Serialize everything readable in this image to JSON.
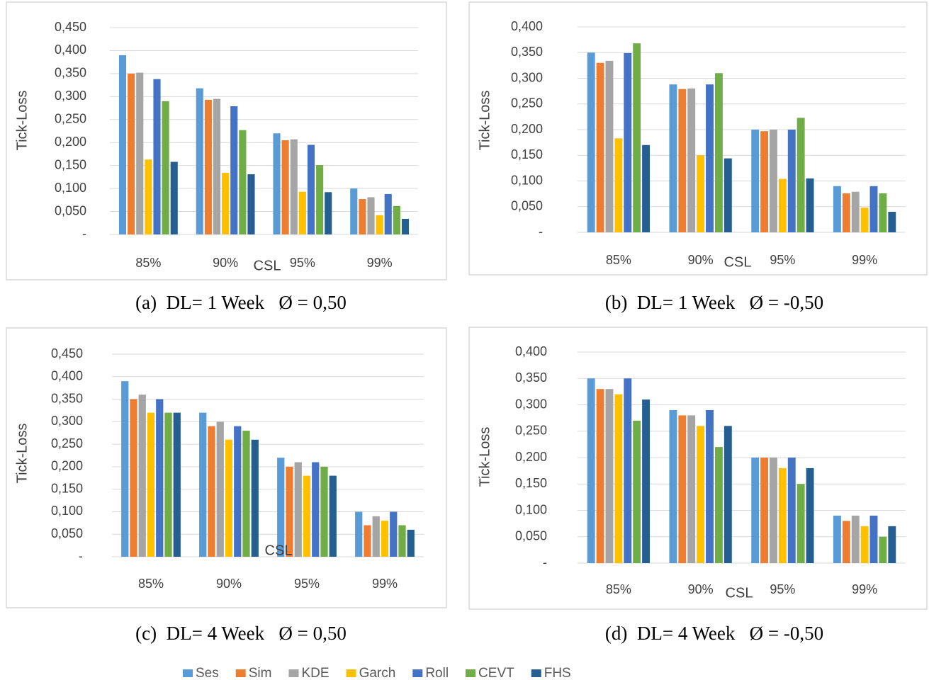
{
  "chart_data": [
    {
      "type": "bar",
      "caption": "(a)  DL= 1 Week   Ø = 0,50",
      "y_label": "Tick-Loss",
      "x_label": "CSL",
      "categories": [
        "85%",
        "90%",
        "95%",
        "99%"
      ],
      "ylim": [
        0,
        0.45
      ],
      "grid": true,
      "yticks": [
        {
          "value": 0,
          "label": "-"
        },
        {
          "value": 0.05,
          "label": "0,050"
        },
        {
          "value": 0.1,
          "label": "0,100"
        },
        {
          "value": 0.15,
          "label": "0,150"
        },
        {
          "value": 0.2,
          "label": "0,200"
        },
        {
          "value": 0.25,
          "label": "0,250"
        },
        {
          "value": 0.3,
          "label": "0,300"
        },
        {
          "value": 0.35,
          "label": "0,350"
        },
        {
          "value": 0.4,
          "label": "0,400"
        },
        {
          "value": 0.45,
          "label": "0,450"
        }
      ],
      "series": [
        {
          "values": [
            0.39,
            0.318,
            0.22,
            0.1
          ]
        },
        {
          "values": [
            0.35,
            0.293,
            0.205,
            0.077
          ]
        },
        {
          "values": [
            0.352,
            0.295,
            0.207,
            0.081
          ]
        },
        {
          "values": [
            0.163,
            0.134,
            0.093,
            0.042
          ]
        },
        {
          "values": [
            0.338,
            0.279,
            0.195,
            0.088
          ]
        },
        {
          "values": [
            0.29,
            0.227,
            0.151,
            0.062
          ]
        },
        {
          "values": [
            0.158,
            0.131,
            0.092,
            0.034
          ]
        }
      ]
    },
    {
      "type": "bar",
      "caption": "(b)  DL= 1 Week   Ø = -0,50",
      "y_label": "Tick-Loss",
      "x_label": "CSL",
      "categories": [
        "85%",
        "90%",
        "95%",
        "99%"
      ],
      "ylim": [
        0,
        0.4
      ],
      "grid": true,
      "yticks": [
        {
          "value": 0,
          "label": "-"
        },
        {
          "value": 0.05,
          "label": "0,050"
        },
        {
          "value": 0.1,
          "label": "0,100"
        },
        {
          "value": 0.15,
          "label": "0,150"
        },
        {
          "value": 0.2,
          "label": "0,200"
        },
        {
          "value": 0.25,
          "label": "0,250"
        },
        {
          "value": 0.3,
          "label": "0,300"
        },
        {
          "value": 0.35,
          "label": "0,350"
        },
        {
          "value": 0.4,
          "label": "0,400"
        }
      ],
      "series": [
        {
          "values": [
            0.35,
            0.288,
            0.2,
            0.09
          ]
        },
        {
          "values": [
            0.33,
            0.279,
            0.197,
            0.076
          ]
        },
        {
          "values": [
            0.334,
            0.28,
            0.2,
            0.079
          ]
        },
        {
          "values": [
            0.183,
            0.15,
            0.104,
            0.048
          ]
        },
        {
          "values": [
            0.349,
            0.288,
            0.2,
            0.09
          ]
        },
        {
          "values": [
            0.368,
            0.31,
            0.223,
            0.076
          ]
        },
        {
          "values": [
            0.17,
            0.144,
            0.105,
            0.04
          ]
        }
      ]
    },
    {
      "type": "bar",
      "caption": "(c)  DL= 4 Week   Ø = 0,50",
      "y_label": "Tick-Loss",
      "x_label": "CSL",
      "categories": [
        "85%",
        "90%",
        "95%",
        "99%"
      ],
      "ylim": [
        0,
        0.45
      ],
      "grid": true,
      "yticks": [
        {
          "value": 0,
          "label": "-"
        },
        {
          "value": 0.05,
          "label": "0,050"
        },
        {
          "value": 0.1,
          "label": "0,100"
        },
        {
          "value": 0.15,
          "label": "0,150"
        },
        {
          "value": 0.2,
          "label": "0,200"
        },
        {
          "value": 0.25,
          "label": "0,250"
        },
        {
          "value": 0.3,
          "label": "0,300"
        },
        {
          "value": 0.35,
          "label": "0,350"
        },
        {
          "value": 0.4,
          "label": "0,400"
        },
        {
          "value": 0.45,
          "label": "0,450"
        }
      ],
      "series": [
        {
          "values": [
            0.39,
            0.32,
            0.22,
            0.1
          ]
        },
        {
          "values": [
            0.35,
            0.29,
            0.2,
            0.07
          ]
        },
        {
          "values": [
            0.36,
            0.3,
            0.21,
            0.09
          ]
        },
        {
          "values": [
            0.32,
            0.26,
            0.18,
            0.08
          ]
        },
        {
          "values": [
            0.35,
            0.29,
            0.21,
            0.1
          ]
        },
        {
          "values": [
            0.32,
            0.28,
            0.2,
            0.07
          ]
        },
        {
          "values": [
            0.32,
            0.26,
            0.18,
            0.06
          ]
        }
      ]
    },
    {
      "type": "bar",
      "caption": "(d)  DL= 4 Week   Ø = -0,50",
      "y_label": "Tick-Loss",
      "x_label": "CSL",
      "categories": [
        "85%",
        "90%",
        "95%",
        "99%"
      ],
      "ylim": [
        0,
        0.4
      ],
      "grid": true,
      "yticks": [
        {
          "value": 0,
          "label": "-"
        },
        {
          "value": 0.05,
          "label": "0,050"
        },
        {
          "value": 0.1,
          "label": "0,100"
        },
        {
          "value": 0.15,
          "label": "0,150"
        },
        {
          "value": 0.2,
          "label": "0,200"
        },
        {
          "value": 0.25,
          "label": "0,250"
        },
        {
          "value": 0.3,
          "label": "0,300"
        },
        {
          "value": 0.35,
          "label": "0,350"
        },
        {
          "value": 0.4,
          "label": "0,400"
        }
      ],
      "series": [
        {
          "values": [
            0.35,
            0.29,
            0.2,
            0.09
          ]
        },
        {
          "values": [
            0.33,
            0.28,
            0.2,
            0.08
          ]
        },
        {
          "values": [
            0.33,
            0.28,
            0.2,
            0.09
          ]
        },
        {
          "values": [
            0.32,
            0.26,
            0.18,
            0.07
          ]
        },
        {
          "values": [
            0.35,
            0.29,
            0.2,
            0.09
          ]
        },
        {
          "values": [
            0.27,
            0.22,
            0.15,
            0.05
          ]
        },
        {
          "values": [
            0.31,
            0.26,
            0.18,
            0.07
          ]
        }
      ]
    }
  ],
  "legend": [
    {
      "name": "Ses",
      "color": "#5b9bd5"
    },
    {
      "name": "Sim",
      "color": "#ed7d31"
    },
    {
      "name": "KDE",
      "color": "#a5a5a5"
    },
    {
      "name": "Garch",
      "color": "#ffc000"
    },
    {
      "name": "Roll",
      "color": "#4472c4"
    },
    {
      "name": "CEVT",
      "color": "#70ad47"
    },
    {
      "name": "FHS",
      "color": "#255e91"
    }
  ]
}
